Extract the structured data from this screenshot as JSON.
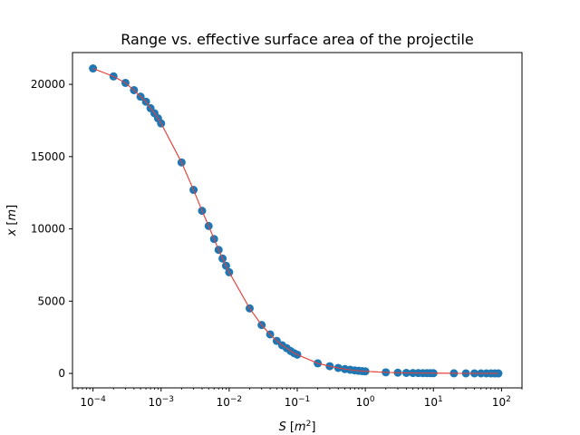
{
  "chart_data": {
    "type": "scatter",
    "title": "Range vs. effective surface area of the projectile",
    "xlabel": {
      "var": "S",
      "unit_base": "m",
      "unit_exp": "2"
    },
    "ylabel": {
      "var": "x",
      "unit": "m"
    },
    "xscale": "log",
    "xlim": [
      5e-05,
      200
    ],
    "ylim": [
      -1000,
      22200
    ],
    "xticks": [
      {
        "value": 0.0001,
        "base": "10",
        "exp": "−4"
      },
      {
        "value": 0.001,
        "base": "10",
        "exp": "−3"
      },
      {
        "value": 0.01,
        "base": "10",
        "exp": "−2"
      },
      {
        "value": 0.1,
        "base": "10",
        "exp": "−1"
      },
      {
        "value": 1,
        "base": "10",
        "exp": "0"
      },
      {
        "value": 10,
        "base": "10",
        "exp": "1"
      },
      {
        "value": 100,
        "base": "10",
        "exp": "2"
      }
    ],
    "yticks": [
      {
        "value": 0,
        "label": "0"
      },
      {
        "value": 5000,
        "label": "5000"
      },
      {
        "value": 10000,
        "label": "10000"
      },
      {
        "value": 15000,
        "label": "15000"
      },
      {
        "value": 20000,
        "label": "20000"
      }
    ],
    "grid": false,
    "legend": "none",
    "series": [
      {
        "marker_color": "#1f77b4",
        "line_color": "#e8413a",
        "points": [
          [
            0.0001,
            21100
          ],
          [
            0.0002,
            20550
          ],
          [
            0.0003,
            20100
          ],
          [
            0.0004,
            19600
          ],
          [
            0.0005,
            19150
          ],
          [
            0.0006,
            18800
          ],
          [
            0.0007,
            18350
          ],
          [
            0.0008,
            18000
          ],
          [
            0.0009,
            17650
          ],
          [
            0.001,
            17300
          ],
          [
            0.002,
            14600
          ],
          [
            0.003,
            12700
          ],
          [
            0.004,
            11250
          ],
          [
            0.005,
            10200
          ],
          [
            0.006,
            9300
          ],
          [
            0.007,
            8550
          ],
          [
            0.008,
            7950
          ],
          [
            0.009,
            7450
          ],
          [
            0.01,
            7000
          ],
          [
            0.02,
            4500
          ],
          [
            0.03,
            3350
          ],
          [
            0.04,
            2700
          ],
          [
            0.05,
            2250
          ],
          [
            0.06,
            1950
          ],
          [
            0.07,
            1750
          ],
          [
            0.08,
            1550
          ],
          [
            0.09,
            1400
          ],
          [
            0.1,
            1300
          ],
          [
            0.2,
            700
          ],
          [
            0.3,
            500
          ],
          [
            0.4,
            380
          ],
          [
            0.5,
            300
          ],
          [
            0.6,
            250
          ],
          [
            0.7,
            210
          ],
          [
            0.8,
            180
          ],
          [
            0.9,
            160
          ],
          [
            1,
            145
          ],
          [
            2,
            75
          ],
          [
            3,
            50
          ],
          [
            4,
            38
          ],
          [
            5,
            30
          ],
          [
            6,
            25
          ],
          [
            7,
            22
          ],
          [
            8,
            19
          ],
          [
            9,
            17
          ],
          [
            10,
            15
          ],
          [
            20,
            8
          ],
          [
            30,
            5
          ],
          [
            40,
            4
          ],
          [
            50,
            3
          ],
          [
            60,
            3
          ],
          [
            70,
            2
          ],
          [
            80,
            2
          ],
          [
            90,
            2
          ]
        ]
      }
    ]
  }
}
